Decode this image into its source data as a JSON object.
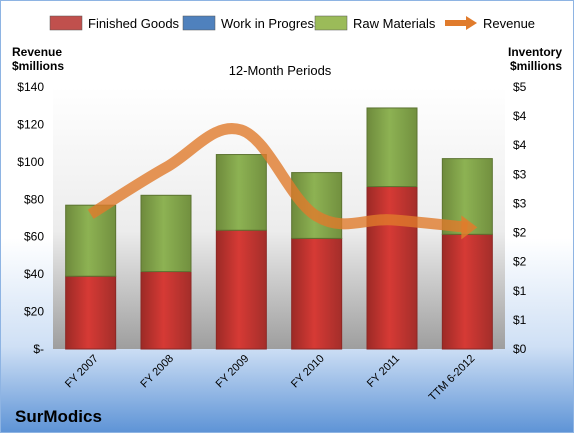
{
  "chart_data": {
    "type": "bar",
    "title": "12-Month Periods",
    "company": "SurModics",
    "left_axis_label": [
      "Revenue",
      "$millions"
    ],
    "right_axis_label": [
      "Inventory",
      "$millions"
    ],
    "categories": [
      "FY 2007",
      "FY 2008",
      "FY 2009",
      "FY 2010",
      "FY 2011",
      "TTM 6-2012"
    ],
    "left_ticks": [
      "$-",
      "$20",
      "$40",
      "$60",
      "$80",
      "$100",
      "$120",
      "$140"
    ],
    "right_ticks": [
      "$0",
      "$1",
      "$1",
      "$2",
      "$2",
      "$3",
      "$3",
      "$4",
      "$4",
      "$5"
    ],
    "left_ylim": [
      0,
      140
    ],
    "right_ylim": [
      0,
      4.5
    ],
    "legend_position": "top",
    "grid": false,
    "series": [
      {
        "name": "Finished Goods",
        "axis": "right",
        "kind": "bar",
        "color": "#c0504d",
        "values": [
          1.25,
          1.33,
          2.04,
          1.9,
          2.79,
          1.97
        ]
      },
      {
        "name": "Work in Progress",
        "axis": "right",
        "kind": "bar",
        "color": "#4f81bd",
        "values": [
          0.0,
          0.0,
          0.0,
          0.0,
          0.0,
          0.0
        ]
      },
      {
        "name": "Raw Materials",
        "axis": "right",
        "kind": "bar",
        "color": "#9bbb59",
        "values": [
          1.22,
          1.31,
          1.3,
          1.13,
          1.35,
          1.3
        ]
      },
      {
        "name": "Revenue",
        "axis": "left",
        "kind": "line",
        "color": "#e07b2c",
        "values": [
          72,
          97,
          117,
          71,
          69,
          65
        ]
      }
    ]
  }
}
